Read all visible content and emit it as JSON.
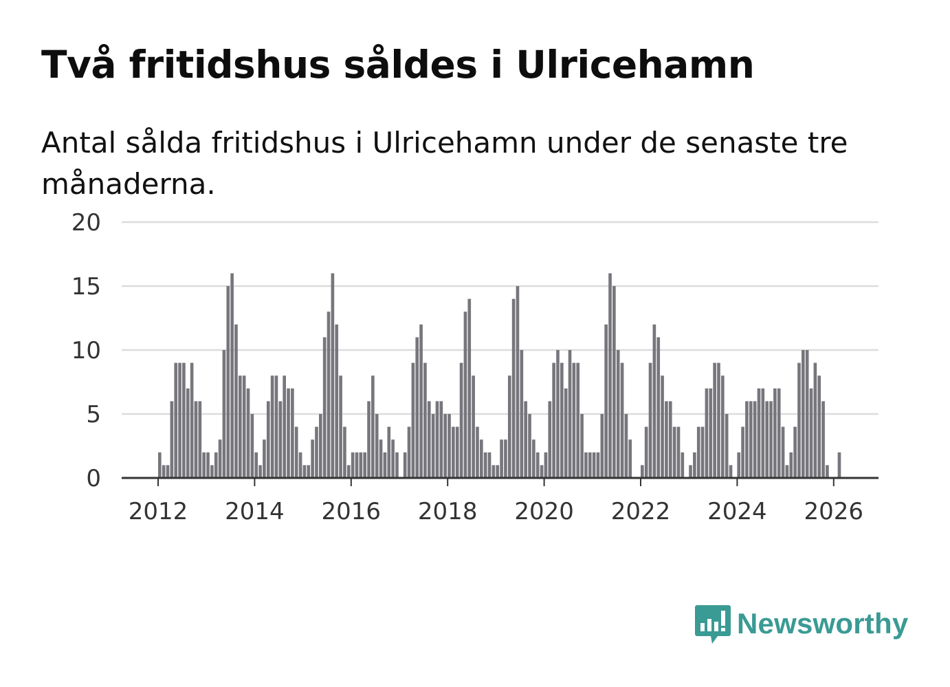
{
  "header": {
    "title": "Två fritidshus såldes i Ulricehamn",
    "subtitle": "Antal sålda fritidshus i Ulricehamn under de senaste tre månaderna."
  },
  "brand": {
    "name": "Newsworthy",
    "icon": "newsworthy-logo-icon",
    "color": "#3a9a94"
  },
  "chart_data": {
    "type": "bar",
    "title": "Två fritidshus såldes i Ulricehamn",
    "subtitle": "Antal sålda fritidshus i Ulricehamn under de senaste tre månaderna.",
    "xlabel": "",
    "ylabel": "",
    "ylim": [
      0,
      20
    ],
    "yticks": [
      "0",
      "5",
      "10",
      "15",
      "20"
    ],
    "xticks": [
      "2012",
      "2014",
      "2016",
      "2018",
      "2020",
      "2022",
      "2024",
      "2026"
    ],
    "start": "2012-01",
    "grid": true,
    "bar_color": "#77767c",
    "highlight_color": "#1a9e99",
    "annotation": {
      "label": "2",
      "index": 170
    },
    "values": [
      2,
      1,
      1,
      6,
      9,
      9,
      9,
      7,
      9,
      6,
      6,
      2,
      2,
      1,
      2,
      3,
      10,
      15,
      16,
      12,
      8,
      8,
      7,
      5,
      2,
      1,
      3,
      6,
      8,
      8,
      6,
      8,
      7,
      7,
      4,
      2,
      1,
      1,
      3,
      4,
      5,
      11,
      13,
      16,
      12,
      8,
      4,
      1,
      2,
      2,
      2,
      2,
      6,
      8,
      5,
      3,
      2,
      4,
      3,
      2,
      0,
      2,
      4,
      9,
      11,
      12,
      9,
      6,
      5,
      6,
      6,
      5,
      5,
      4,
      4,
      9,
      13,
      14,
      8,
      4,
      3,
      2,
      2,
      1,
      1,
      3,
      3,
      8,
      14,
      15,
      10,
      6,
      5,
      3,
      2,
      1,
      2,
      6,
      9,
      10,
      9,
      7,
      10,
      9,
      9,
      5,
      2,
      2,
      2,
      2,
      5,
      12,
      16,
      15,
      10,
      9,
      5,
      3,
      0,
      0,
      1,
      4,
      9,
      12,
      11,
      8,
      6,
      6,
      4,
      4,
      2,
      0,
      1,
      2,
      4,
      4,
      7,
      7,
      9,
      9,
      8,
      5,
      1,
      0,
      2,
      4,
      6,
      6,
      6,
      7,
      7,
      6,
      6,
      7,
      7,
      4,
      1,
      2,
      4,
      9,
      10,
      10,
      7,
      9,
      8,
      6,
      1,
      0,
      0,
      2
    ]
  }
}
